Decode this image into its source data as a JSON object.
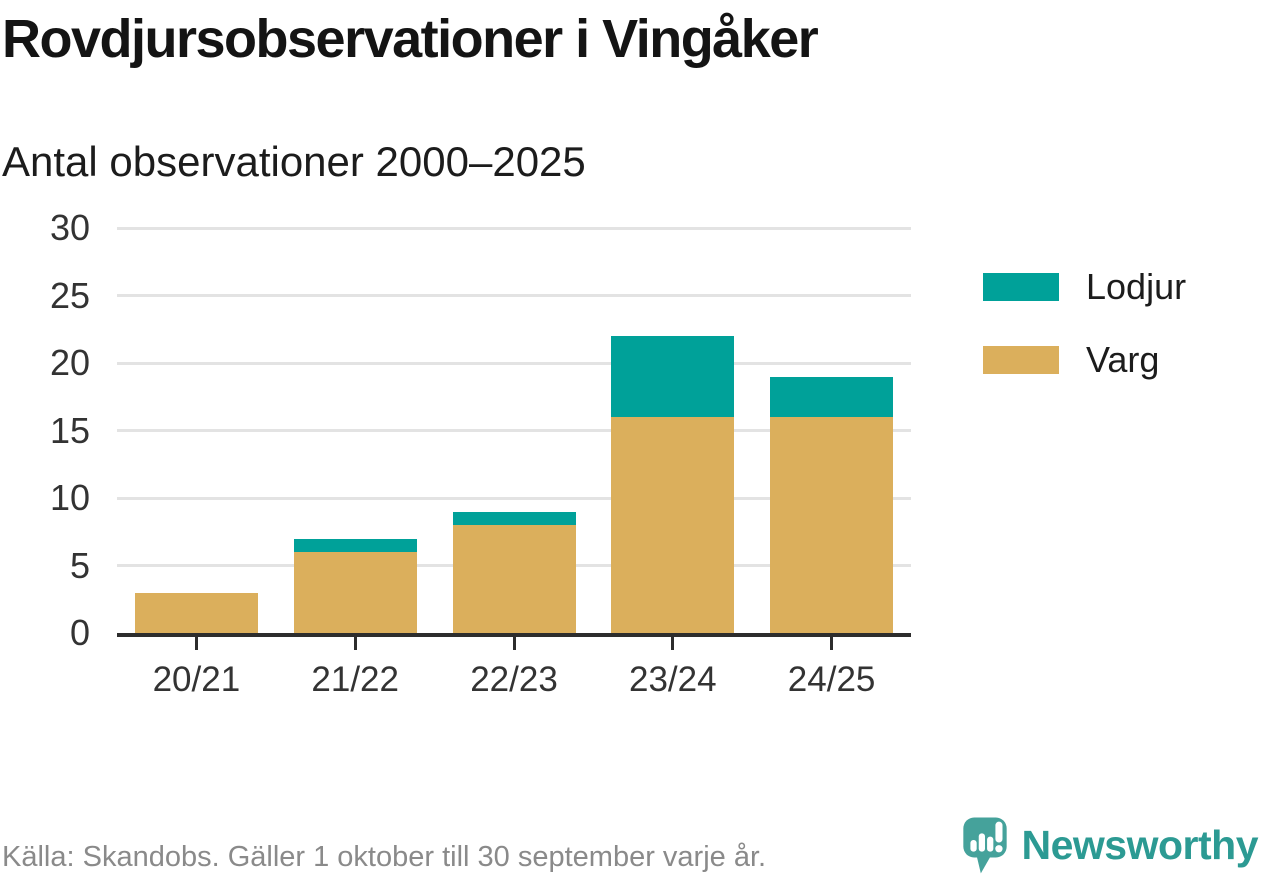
{
  "chart_data": {
    "type": "bar",
    "stacked": true,
    "title": "Rovdjursobservationer i Vingåker",
    "subtitle": "Antal observationer 2000–2025",
    "categories": [
      "20/21",
      "21/22",
      "22/23",
      "23/24",
      "24/25"
    ],
    "series": [
      {
        "name": "Varg",
        "color": "#dbaf5c",
        "values": [
          3,
          6,
          8,
          16,
          16
        ]
      },
      {
        "name": "Lodjur",
        "color": "#00a199",
        "values": [
          0,
          1,
          1,
          6,
          3
        ]
      }
    ],
    "stack_totals": [
      3,
      7,
      9,
      22,
      19
    ],
    "xlabel": "",
    "ylabel": "",
    "ylim": [
      0,
      30
    ],
    "yticks": [
      0,
      5,
      10,
      15,
      20,
      25,
      30
    ],
    "grid": "horizontal",
    "legend_position": "right",
    "legend_order": [
      "Lodjur",
      "Varg"
    ]
  },
  "footer": {
    "source": "Källa: Skandobs. Gäller 1 oktober till 30 september varje år.",
    "brand": "Newsworthy"
  },
  "colors": {
    "lodjur": "#00a199",
    "varg": "#dbaf5c",
    "axis": "#2d2d2d",
    "gridline": "#e3e3e3",
    "text": "#1c1c1c",
    "axis_text": "#333333",
    "muted_text": "#8a8a8a",
    "brand_teal": "#2c9a93",
    "icon_teal": "#45a29b"
  }
}
